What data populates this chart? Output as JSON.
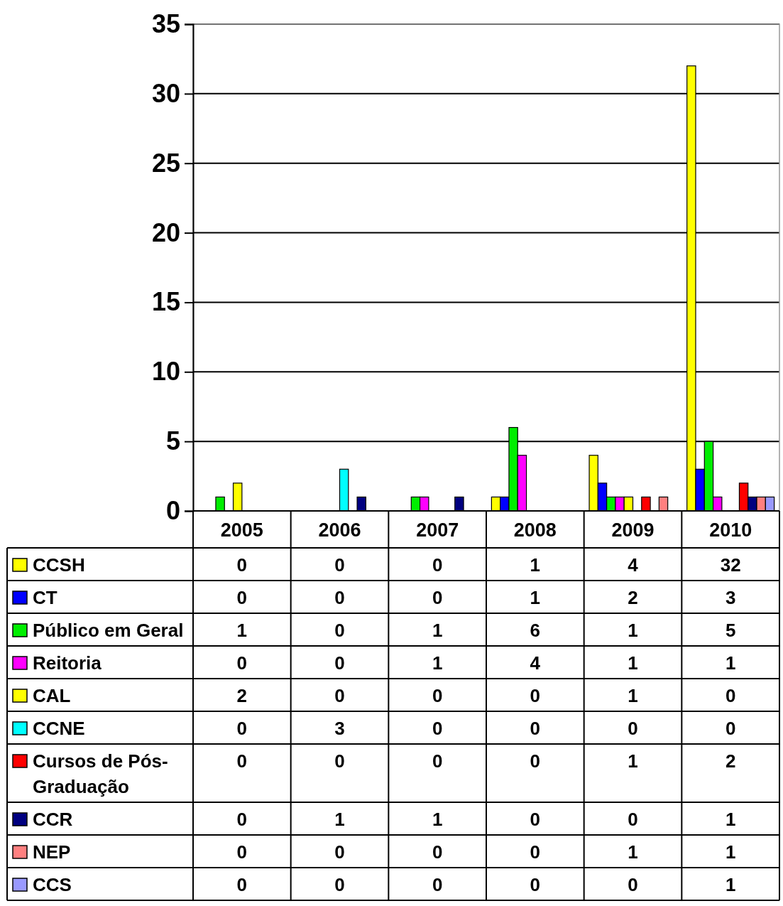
{
  "chart_data": {
    "type": "bar",
    "categories": [
      "2005",
      "2006",
      "2007",
      "2008",
      "2009",
      "2010"
    ],
    "series": [
      {
        "name": "CCSH",
        "color": "#ffff00",
        "values": [
          0,
          0,
          0,
          1,
          4,
          32
        ]
      },
      {
        "name": "CT",
        "color": "#0000ff",
        "values": [
          0,
          0,
          0,
          1,
          2,
          3
        ]
      },
      {
        "name": "Público em Geral",
        "color": "#00ee00",
        "values": [
          1,
          0,
          1,
          6,
          1,
          5
        ]
      },
      {
        "name": "Reitoria",
        "color": "#ff00ff",
        "values": [
          0,
          0,
          1,
          4,
          1,
          1
        ]
      },
      {
        "name": "CAL",
        "color": "#ffff00",
        "values": [
          2,
          0,
          0,
          0,
          1,
          0
        ]
      },
      {
        "name": "CCNE",
        "color": "#00ffff",
        "values": [
          0,
          3,
          0,
          0,
          0,
          0
        ]
      },
      {
        "name": "Cursos de Pós-Graduação",
        "color": "#ff0000",
        "values": [
          0,
          0,
          0,
          0,
          1,
          2
        ]
      },
      {
        "name": "CCR",
        "color": "#000080",
        "values": [
          0,
          1,
          1,
          0,
          0,
          1
        ]
      },
      {
        "name": "NEP",
        "color": "#ff8080",
        "values": [
          0,
          0,
          0,
          0,
          1,
          1
        ]
      },
      {
        "name": "CCS",
        "color": "#9999ff",
        "values": [
          0,
          0,
          0,
          0,
          0,
          1
        ]
      }
    ],
    "ylim": [
      0,
      35
    ],
    "yticks": [
      0,
      5,
      10,
      15,
      20,
      25,
      30,
      35
    ],
    "grid": "y",
    "legend": "bottom",
    "data_labels": true
  }
}
